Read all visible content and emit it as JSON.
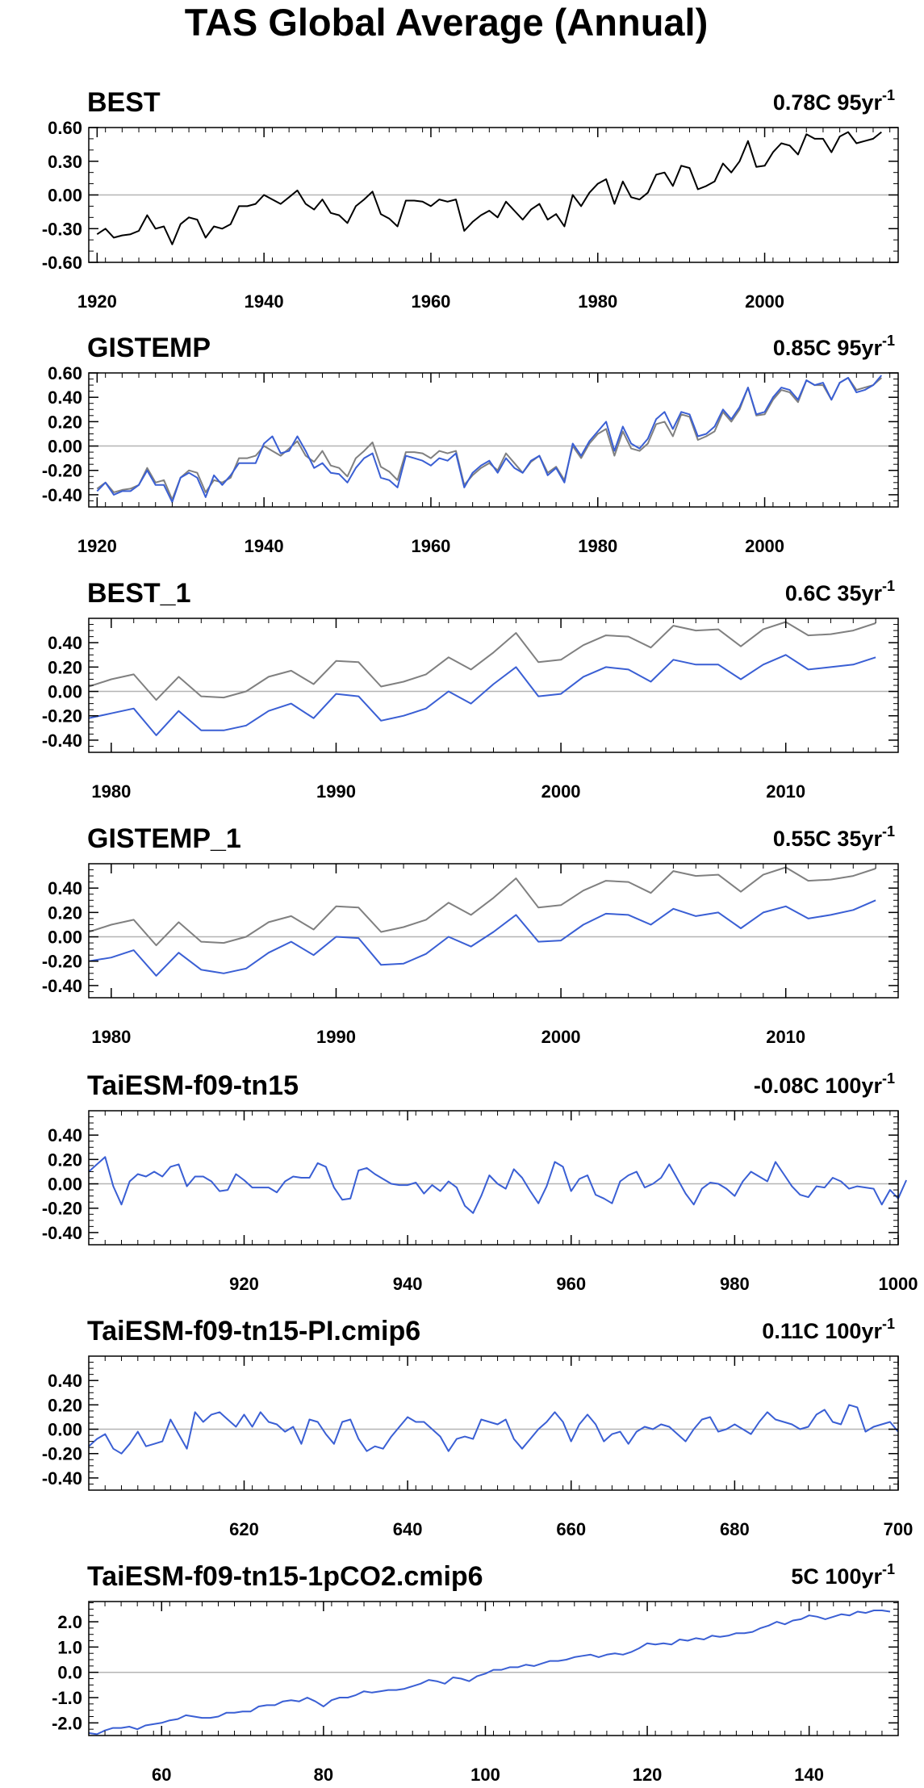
{
  "title": "TAS Global Average (Annual)",
  "colors": {
    "obs": "#000000",
    "model": "#3a5fd4",
    "ref": "#808080",
    "zero": "#b4b4b4",
    "frame": "#000000"
  },
  "chart_data": [
    {
      "type": "line",
      "title": "BEST",
      "trend": "0.78C 95yr",
      "trend_sup": "-1",
      "xlim": [
        1919,
        2016
      ],
      "ylim": [
        -0.6,
        0.6
      ],
      "yticks": [
        "0.60",
        "0.30",
        "0.00",
        "-0.30",
        "-0.60"
      ],
      "ytick_values": [
        0.6,
        0.3,
        0.0,
        -0.3,
        -0.6
      ],
      "xticks": [
        "1920",
        "1940",
        "1960",
        "1980",
        "2000"
      ],
      "xtick_values": [
        1920,
        1940,
        1960,
        1980,
        2000
      ],
      "grid": false,
      "x_start": 1920,
      "series": [
        {
          "color": "#000000",
          "values": [
            -0.35,
            -0.3,
            -0.38,
            -0.36,
            -0.35,
            -0.32,
            -0.18,
            -0.3,
            -0.28,
            -0.44,
            -0.26,
            -0.2,
            -0.22,
            -0.38,
            -0.28,
            -0.3,
            -0.26,
            -0.1,
            -0.1,
            -0.08,
            0.0,
            -0.04,
            -0.08,
            -0.02,
            0.04,
            -0.08,
            -0.13,
            -0.04,
            -0.16,
            -0.18,
            -0.25,
            -0.1,
            -0.04,
            0.03,
            -0.17,
            -0.21,
            -0.28,
            -0.05,
            -0.05,
            -0.06,
            -0.1,
            -0.04,
            -0.06,
            -0.04,
            -0.32,
            -0.24,
            -0.18,
            -0.14,
            -0.2,
            -0.06,
            -0.14,
            -0.22,
            -0.13,
            -0.08,
            -0.22,
            -0.17,
            -0.28,
            0.0,
            -0.1,
            0.02,
            0.1,
            0.14,
            -0.08,
            0.12,
            -0.02,
            -0.04,
            0.02,
            0.18,
            0.2,
            0.08,
            0.26,
            0.24,
            0.05,
            0.08,
            0.12,
            0.28,
            0.2,
            0.3,
            0.48,
            0.25,
            0.26,
            0.38,
            0.46,
            0.44,
            0.36,
            0.54,
            0.5,
            0.5,
            0.38,
            0.52,
            0.56,
            0.46,
            0.48,
            0.5,
            0.56
          ]
        }
      ]
    },
    {
      "type": "line",
      "title": "GISTEMP",
      "trend": "0.85C 95yr",
      "trend_sup": "-1",
      "xlim": [
        1919,
        2016
      ],
      "ylim": [
        -0.5,
        0.6
      ],
      "yticks": [
        "0.60",
        "0.40",
        "0.20",
        "0.00",
        "-0.20",
        "-0.40"
      ],
      "ytick_values": [
        0.6,
        0.4,
        0.2,
        0.0,
        -0.2,
        -0.4
      ],
      "xticks": [
        "1920",
        "1940",
        "1960",
        "1980",
        "2000"
      ],
      "xtick_values": [
        1920,
        1940,
        1960,
        1980,
        2000
      ],
      "grid": false,
      "x_start": 1920,
      "series": [
        {
          "color": "#808080",
          "values": [
            -0.35,
            -0.3,
            -0.38,
            -0.36,
            -0.35,
            -0.32,
            -0.18,
            -0.3,
            -0.28,
            -0.44,
            -0.26,
            -0.2,
            -0.22,
            -0.38,
            -0.28,
            -0.3,
            -0.26,
            -0.1,
            -0.1,
            -0.08,
            0.0,
            -0.04,
            -0.08,
            -0.02,
            0.04,
            -0.08,
            -0.13,
            -0.04,
            -0.16,
            -0.18,
            -0.25,
            -0.1,
            -0.04,
            0.03,
            -0.17,
            -0.21,
            -0.28,
            -0.05,
            -0.05,
            -0.06,
            -0.1,
            -0.04,
            -0.06,
            -0.04,
            -0.32,
            -0.24,
            -0.18,
            -0.14,
            -0.2,
            -0.06,
            -0.14,
            -0.22,
            -0.13,
            -0.08,
            -0.22,
            -0.17,
            -0.28,
            0.0,
            -0.1,
            0.02,
            0.1,
            0.14,
            -0.08,
            0.12,
            -0.02,
            -0.04,
            0.02,
            0.18,
            0.2,
            0.08,
            0.26,
            0.24,
            0.05,
            0.08,
            0.12,
            0.28,
            0.2,
            0.3,
            0.48,
            0.25,
            0.26,
            0.38,
            0.46,
            0.44,
            0.36,
            0.54,
            0.5,
            0.5,
            0.38,
            0.52,
            0.56,
            0.46,
            0.48,
            0.5,
            0.56
          ]
        },
        {
          "color": "#3a5fd4",
          "values": [
            -0.37,
            -0.3,
            -0.4,
            -0.37,
            -0.37,
            -0.32,
            -0.2,
            -0.32,
            -0.32,
            -0.46,
            -0.26,
            -0.22,
            -0.26,
            -0.42,
            -0.24,
            -0.32,
            -0.24,
            -0.14,
            -0.14,
            -0.14,
            0.02,
            0.08,
            -0.06,
            -0.04,
            0.08,
            -0.04,
            -0.18,
            -0.14,
            -0.22,
            -0.23,
            -0.3,
            -0.18,
            -0.1,
            -0.06,
            -0.26,
            -0.28,
            -0.34,
            -0.08,
            -0.1,
            -0.12,
            -0.16,
            -0.1,
            -0.12,
            -0.06,
            -0.34,
            -0.22,
            -0.16,
            -0.12,
            -0.22,
            -0.1,
            -0.18,
            -0.22,
            -0.12,
            -0.08,
            -0.24,
            -0.18,
            -0.3,
            0.02,
            -0.08,
            0.04,
            0.12,
            0.2,
            -0.04,
            0.16,
            0.02,
            -0.02,
            0.06,
            0.22,
            0.28,
            0.14,
            0.28,
            0.26,
            0.08,
            0.1,
            0.16,
            0.3,
            0.22,
            0.32,
            0.48,
            0.26,
            0.28,
            0.4,
            0.48,
            0.46,
            0.38,
            0.54,
            0.5,
            0.52,
            0.38,
            0.52,
            0.56,
            0.44,
            0.46,
            0.5,
            0.58
          ]
        }
      ]
    },
    {
      "type": "line",
      "title": "BEST_1",
      "trend": "0.6C 35yr",
      "trend_sup": "-1",
      "xlim": [
        1979,
        2015
      ],
      "ylim": [
        -0.5,
        0.6
      ],
      "yticks": [
        "0.40",
        "0.20",
        "0.00",
        "-0.20",
        "-0.40"
      ],
      "ytick_values": [
        0.4,
        0.2,
        0.0,
        -0.2,
        -0.4
      ],
      "xticks": [
        "1980",
        "1990",
        "2000",
        "2010"
      ],
      "xtick_values": [
        1980,
        1990,
        2000,
        2010
      ],
      "grid": false,
      "x_start": 1979,
      "series": [
        {
          "color": "#808080",
          "values": [
            0.04,
            0.1,
            0.14,
            -0.07,
            0.12,
            -0.04,
            -0.05,
            0.0,
            0.12,
            0.17,
            0.06,
            0.25,
            0.24,
            0.04,
            0.08,
            0.14,
            0.28,
            0.18,
            0.32,
            0.48,
            0.24,
            0.26,
            0.38,
            0.46,
            0.45,
            0.36,
            0.54,
            0.5,
            0.51,
            0.37,
            0.51,
            0.57,
            0.46,
            0.47,
            0.5,
            0.56
          ]
        },
        {
          "color": "#3a5fd4",
          "values": [
            -0.22,
            -0.18,
            -0.14,
            -0.36,
            -0.16,
            -0.32,
            -0.32,
            -0.28,
            -0.16,
            -0.1,
            -0.22,
            -0.02,
            -0.04,
            -0.24,
            -0.2,
            -0.14,
            0.0,
            -0.1,
            0.06,
            0.2,
            -0.04,
            -0.02,
            0.12,
            0.2,
            0.18,
            0.08,
            0.26,
            0.22,
            0.22,
            0.1,
            0.22,
            0.3,
            0.18,
            0.2,
            0.22,
            0.28
          ]
        }
      ]
    },
    {
      "type": "line",
      "title": "GISTEMP_1",
      "trend": "0.55C 35yr",
      "trend_sup": "-1",
      "xlim": [
        1979,
        2015
      ],
      "ylim": [
        -0.5,
        0.6
      ],
      "yticks": [
        "0.40",
        "0.20",
        "0.00",
        "-0.20",
        "-0.40"
      ],
      "ytick_values": [
        0.4,
        0.2,
        0.0,
        -0.2,
        -0.4
      ],
      "xticks": [
        "1980",
        "1990",
        "2000",
        "2010"
      ],
      "xtick_values": [
        1980,
        1990,
        2000,
        2010
      ],
      "grid": false,
      "x_start": 1979,
      "series": [
        {
          "color": "#808080",
          "values": [
            0.04,
            0.1,
            0.14,
            -0.07,
            0.12,
            -0.04,
            -0.05,
            0.0,
            0.12,
            0.17,
            0.06,
            0.25,
            0.24,
            0.04,
            0.08,
            0.14,
            0.28,
            0.18,
            0.32,
            0.48,
            0.24,
            0.26,
            0.38,
            0.46,
            0.45,
            0.36,
            0.54,
            0.5,
            0.51,
            0.37,
            0.51,
            0.57,
            0.46,
            0.47,
            0.5,
            0.56
          ]
        },
        {
          "color": "#3a5fd4",
          "values": [
            -0.2,
            -0.17,
            -0.11,
            -0.32,
            -0.13,
            -0.27,
            -0.3,
            -0.26,
            -0.13,
            -0.04,
            -0.15,
            0.0,
            -0.01,
            -0.23,
            -0.22,
            -0.14,
            0.0,
            -0.08,
            0.04,
            0.18,
            -0.04,
            -0.03,
            0.1,
            0.19,
            0.18,
            0.1,
            0.23,
            0.17,
            0.2,
            0.07,
            0.2,
            0.25,
            0.15,
            0.18,
            0.22,
            0.3
          ]
        }
      ]
    },
    {
      "type": "line",
      "title": "TaiESM-f09-tn15",
      "trend": "-0.08C 100yr",
      "trend_sup": "-1",
      "xlim": [
        901,
        1000
      ],
      "ylim": [
        -0.5,
        0.6
      ],
      "yticks": [
        "0.40",
        "0.20",
        "0.00",
        "-0.20",
        "-0.40"
      ],
      "ytick_values": [
        0.4,
        0.2,
        0.0,
        -0.2,
        -0.4
      ],
      "xticks": [
        "920",
        "940",
        "960",
        "980",
        "1000"
      ],
      "xtick_values": [
        920,
        940,
        960,
        980,
        1000
      ],
      "grid": false,
      "x_start": 901,
      "series": [
        {
          "color": "#3a5fd4",
          "values": [
            0.1,
            0.16,
            0.22,
            -0.02,
            -0.17,
            0.02,
            0.08,
            0.06,
            0.1,
            0.06,
            0.14,
            0.16,
            -0.02,
            0.06,
            0.06,
            0.02,
            -0.06,
            -0.05,
            0.08,
            0.03,
            -0.03,
            -0.03,
            -0.03,
            -0.07,
            0.02,
            0.06,
            0.05,
            0.05,
            0.17,
            0.14,
            -0.03,
            -0.13,
            -0.12,
            0.11,
            0.13,
            0.08,
            0.04,
            0.0,
            -0.01,
            -0.01,
            0.01,
            -0.08,
            -0.01,
            -0.06,
            0.02,
            -0.03,
            -0.18,
            -0.24,
            -0.1,
            0.07,
            0.0,
            -0.04,
            0.12,
            0.05,
            -0.06,
            -0.16,
            -0.02,
            0.18,
            0.14,
            -0.06,
            0.04,
            0.07,
            -0.09,
            -0.12,
            -0.16,
            0.02,
            0.07,
            0.1,
            -0.03,
            0.0,
            0.05,
            0.16,
            0.04,
            -0.08,
            -0.17,
            -0.04,
            0.01,
            0.0,
            -0.04,
            -0.1,
            0.02,
            0.1,
            0.06,
            0.02,
            0.18,
            0.08,
            -0.02,
            -0.09,
            -0.11,
            -0.02,
            -0.03,
            0.05,
            0.02,
            -0.04,
            -0.02,
            -0.03,
            -0.04,
            -0.17,
            -0.05,
            -0.12,
            0.03
          ]
        }
      ]
    },
    {
      "type": "line",
      "title": "TaiESM-f09-tn15-PI.cmip6",
      "trend": "0.11C 100yr",
      "trend_sup": "-1",
      "xlim": [
        601,
        700
      ],
      "ylim": [
        -0.5,
        0.6
      ],
      "yticks": [
        "0.40",
        "0.20",
        "0.00",
        "-0.20",
        "-0.40"
      ],
      "ytick_values": [
        0.4,
        0.2,
        0.0,
        -0.2,
        -0.4
      ],
      "xticks": [
        "620",
        "640",
        "660",
        "680",
        "700"
      ],
      "xtick_values": [
        620,
        640,
        660,
        680,
        700
      ],
      "grid": false,
      "x_start": 601,
      "series": [
        {
          "color": "#3a5fd4",
          "values": [
            -0.14,
            -0.08,
            -0.04,
            -0.16,
            -0.2,
            -0.12,
            -0.02,
            -0.14,
            -0.12,
            -0.1,
            0.08,
            -0.04,
            -0.16,
            0.14,
            0.06,
            0.12,
            0.14,
            0.08,
            0.02,
            0.12,
            0.02,
            0.14,
            0.06,
            0.04,
            -0.02,
            0.02,
            -0.12,
            0.08,
            0.06,
            -0.04,
            -0.12,
            0.06,
            0.08,
            -0.08,
            -0.18,
            -0.14,
            -0.16,
            -0.06,
            0.02,
            0.1,
            0.06,
            0.06,
            0.0,
            -0.06,
            -0.18,
            -0.08,
            -0.06,
            -0.08,
            0.08,
            0.06,
            0.04,
            0.08,
            -0.08,
            -0.16,
            -0.08,
            0.0,
            0.06,
            0.14,
            0.06,
            -0.1,
            0.04,
            0.12,
            0.04,
            -0.1,
            -0.04,
            -0.02,
            -0.12,
            -0.02,
            0.02,
            0.0,
            0.04,
            0.02,
            -0.04,
            -0.1,
            0.0,
            0.08,
            0.1,
            -0.02,
            0.0,
            0.04,
            0.0,
            -0.04,
            0.06,
            0.14,
            0.08,
            0.06,
            0.04,
            0.0,
            0.02,
            0.12,
            0.16,
            0.06,
            0.04,
            0.2,
            0.18,
            -0.02,
            0.02,
            0.04,
            0.06,
            -0.02
          ]
        }
      ]
    },
    {
      "type": "line",
      "title": "TaiESM-f09-tn15-1pCO2.cmip6",
      "trend": "5C 100yr",
      "trend_sup": "-1",
      "xlim": [
        51,
        151
      ],
      "ylim": [
        -2.5,
        2.8
      ],
      "yticks": [
        "2.0",
        "1.0",
        "0.0",
        "-1.0",
        "-2.0"
      ],
      "ytick_values": [
        2.0,
        1.0,
        0.0,
        -1.0,
        -2.0
      ],
      "xticks": [
        "60",
        "80",
        "100",
        "120",
        "140"
      ],
      "xtick_values": [
        60,
        80,
        100,
        120,
        140
      ],
      "grid": false,
      "x_start": 51,
      "series": [
        {
          "color": "#3a5fd4",
          "values": [
            -2.4,
            -2.45,
            -2.3,
            -2.2,
            -2.2,
            -2.15,
            -2.25,
            -2.1,
            -2.05,
            -2.0,
            -1.9,
            -1.85,
            -1.7,
            -1.75,
            -1.8,
            -1.8,
            -1.75,
            -1.6,
            -1.6,
            -1.55,
            -1.55,
            -1.35,
            -1.3,
            -1.3,
            -1.15,
            -1.1,
            -1.15,
            -1.0,
            -1.15,
            -1.35,
            -1.1,
            -1.0,
            -1.0,
            -0.9,
            -0.75,
            -0.8,
            -0.75,
            -0.7,
            -0.7,
            -0.65,
            -0.55,
            -0.45,
            -0.3,
            -0.35,
            -0.45,
            -0.2,
            -0.25,
            -0.35,
            -0.15,
            -0.05,
            0.1,
            0.1,
            0.2,
            0.2,
            0.3,
            0.25,
            0.35,
            0.45,
            0.45,
            0.5,
            0.6,
            0.65,
            0.7,
            0.6,
            0.7,
            0.75,
            0.7,
            0.8,
            0.95,
            1.15,
            1.1,
            1.15,
            1.1,
            1.3,
            1.25,
            1.35,
            1.3,
            1.45,
            1.4,
            1.45,
            1.55,
            1.55,
            1.6,
            1.75,
            1.85,
            2.0,
            1.9,
            2.05,
            2.1,
            2.25,
            2.2,
            2.1,
            2.2,
            2.3,
            2.25,
            2.4,
            2.35,
            2.45,
            2.45,
            2.4
          ]
        }
      ]
    }
  ]
}
